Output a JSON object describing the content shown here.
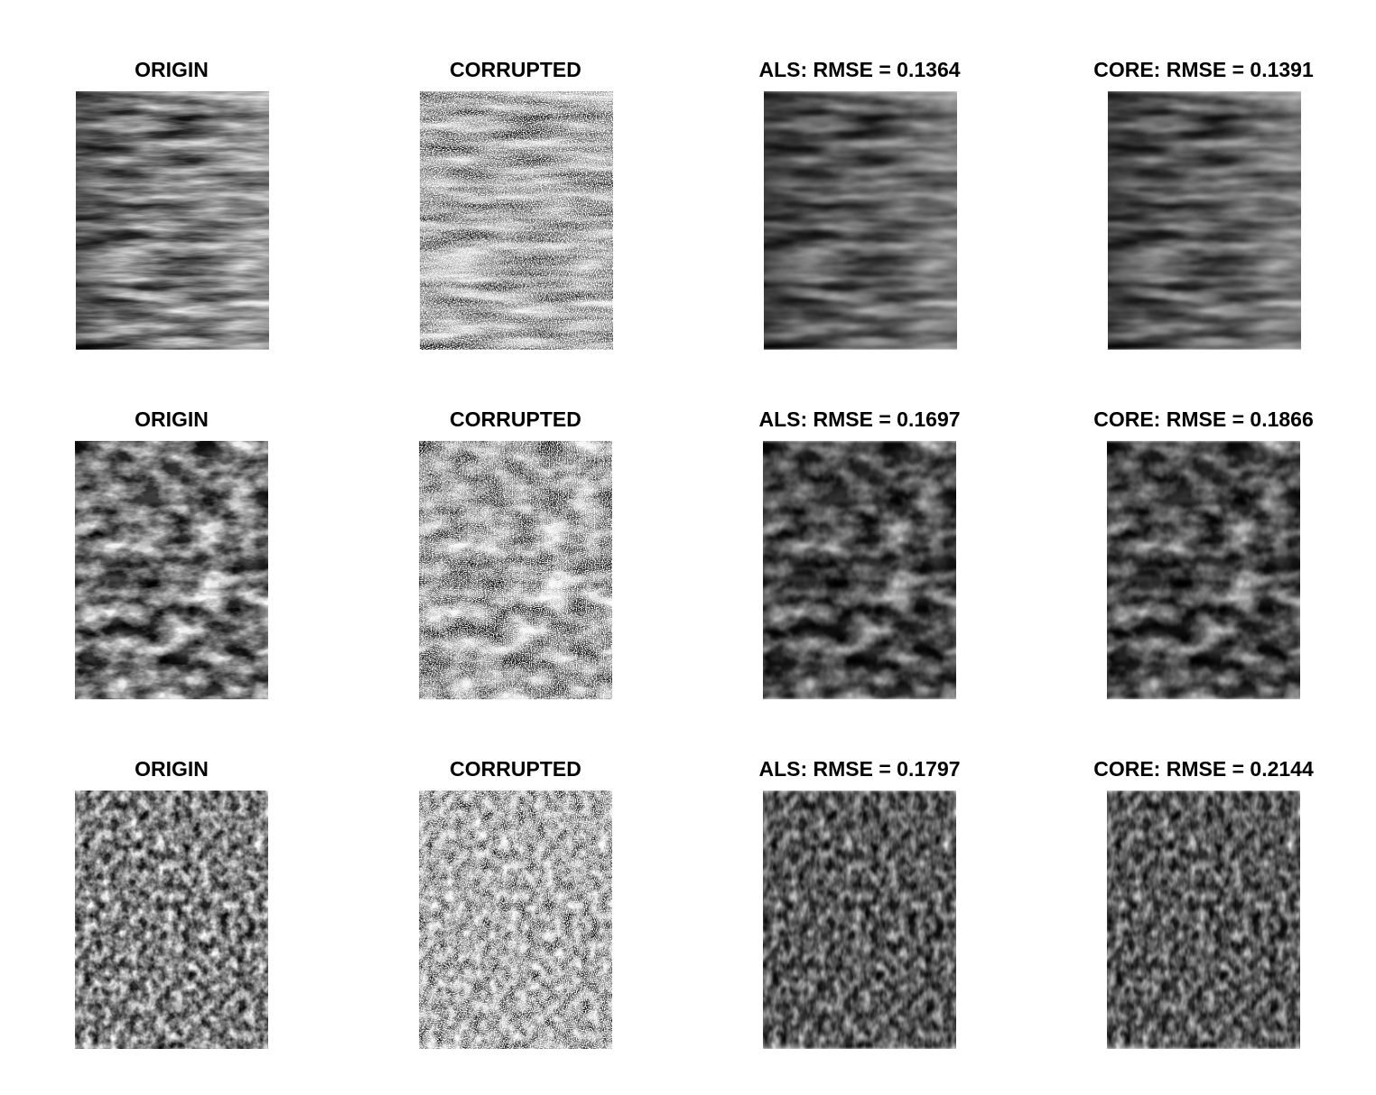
{
  "figure": {
    "rows": [
      {
        "panels": [
          {
            "title": "ORIGIN",
            "kind": "origin",
            "texture": "fibrous-bark"
          },
          {
            "title": "CORRUPTED",
            "kind": "corrupted",
            "texture": "fibrous-bark"
          },
          {
            "title": "ALS: RMSE =  0.1364",
            "kind": "recon",
            "texture": "fibrous-bark"
          },
          {
            "title": "CORE: RMSE =  0.1391",
            "kind": "recon",
            "texture": "fibrous-bark"
          }
        ]
      },
      {
        "panels": [
          {
            "title": "ORIGIN",
            "kind": "origin",
            "texture": "blocky-bark"
          },
          {
            "title": "CORRUPTED",
            "kind": "corrupted",
            "texture": "blocky-bark"
          },
          {
            "title": "ALS: RMSE =  0.1697",
            "kind": "recon",
            "texture": "blocky-bark"
          },
          {
            "title": "CORE: RMSE =  0.1866",
            "kind": "recon",
            "texture": "blocky-bark"
          }
        ]
      },
      {
        "panels": [
          {
            "title": "ORIGIN",
            "kind": "origin",
            "texture": "speckled-bark"
          },
          {
            "title": "CORRUPTED",
            "kind": "corrupted",
            "texture": "speckled-bark"
          },
          {
            "title": "ALS: RMSE =  0.1797",
            "kind": "recon",
            "texture": "speckled-bark"
          },
          {
            "title": "CORE: RMSE =  0.2144",
            "kind": "recon",
            "texture": "speckled-bark"
          }
        ]
      }
    ]
  },
  "colors": {
    "background": "#ffffff",
    "text": "#000000"
  }
}
